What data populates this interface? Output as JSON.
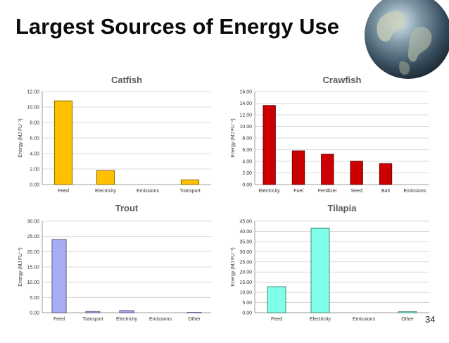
{
  "slide": {
    "title": "Largest Sources of Energy Use",
    "page_number": "34"
  },
  "chart_data": [
    {
      "type": "bar",
      "title": "Catfish",
      "ylabel": "Energy (MJ FU⁻¹)",
      "categories": [
        "Feed",
        "Electricity",
        "Emissions",
        "Transport"
      ],
      "values": [
        10.8,
        1.8,
        0,
        0.6
      ],
      "ylim": [
        0,
        12
      ],
      "yticks": [
        "0.00",
        "2.00",
        "4.00",
        "6.00",
        "8.00",
        "10.00",
        "12.00"
      ],
      "color": "#FFC000",
      "grid": true
    },
    {
      "type": "bar",
      "title": "Crawfish",
      "ylabel": "Energy (MJ FU⁻¹)",
      "categories": [
        "Electricity",
        "Fuel",
        "Fertilizer",
        "Seed",
        "Bait",
        "Emissions"
      ],
      "values": [
        13.6,
        5.8,
        5.2,
        4.0,
        3.6,
        0
      ],
      "ylim": [
        0,
        16
      ],
      "yticks": [
        "0.00",
        "2.00",
        "4.00",
        "6.00",
        "8.00",
        "10.00",
        "12.00",
        "14.00",
        "16.00"
      ],
      "color": "#CC0000",
      "grid": true
    },
    {
      "type": "bar",
      "title": "Trout",
      "ylabel": "Energy (MJ FU⁻¹)",
      "categories": [
        "Feed",
        "Transport",
        "Electricity",
        "Emissions",
        "Other"
      ],
      "values": [
        24.0,
        0.4,
        0.7,
        0,
        0.1
      ],
      "ylim": [
        0,
        30
      ],
      "yticks": [
        "0.00",
        "5.00",
        "10.00",
        "15.00",
        "20.00",
        "25.00",
        "30.00"
      ],
      "color": "#A9ABF5",
      "grid": true
    },
    {
      "type": "bar",
      "title": "Tilapia",
      "ylabel": "Energy (MJ FU⁻¹)",
      "categories": [
        "Feed",
        "Electricity",
        "Emissions",
        "Other"
      ],
      "values": [
        12.8,
        41.5,
        0,
        0.5
      ],
      "ylim": [
        0,
        45
      ],
      "yticks": [
        "0.00",
        "5.00",
        "10.00",
        "15.00",
        "20.00",
        "25.00",
        "30.00",
        "35.00",
        "40.00",
        "45.00"
      ],
      "color": "#7FFFE8",
      "grid": true
    }
  ]
}
